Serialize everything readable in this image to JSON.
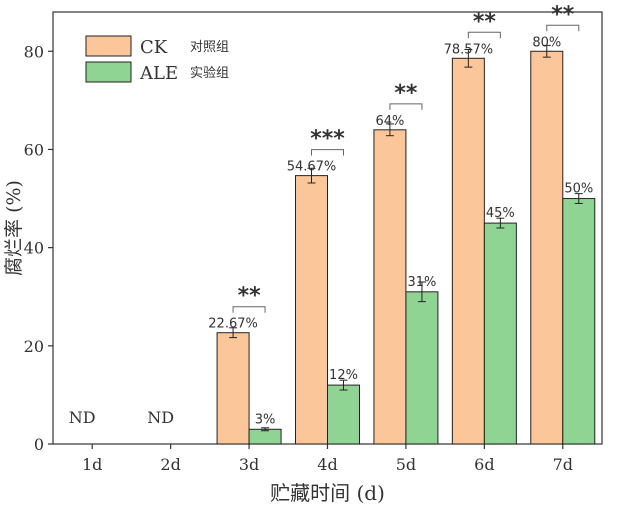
{
  "chart_data": {
    "type": "bar",
    "categories": [
      "1d",
      "2d",
      "3d",
      "4d",
      "5d",
      "6d",
      "7d"
    ],
    "xlabel": "贮藏时间 (d)",
    "ylabel": "腐烂率 (%)",
    "ylim": [
      0,
      88
    ],
    "yticks": [
      0,
      20,
      40,
      60,
      80
    ],
    "legend_position": "top-left",
    "series": [
      {
        "name": "CK",
        "name_cn": "对照组",
        "color": "#fbc79a",
        "values": [
          0,
          0,
          22.67,
          54.67,
          64,
          78.57,
          80
        ],
        "errors": [
          0,
          0,
          1.0,
          1.5,
          1.2,
          1.8,
          1.2
        ],
        "labels": [
          "ND",
          "ND",
          "22.67%",
          "54.67%",
          "64%",
          "78.57%",
          "80%"
        ]
      },
      {
        "name": "ALE",
        "name_cn": "实验组",
        "color": "#90d494",
        "values": [
          0,
          0,
          3,
          12,
          31,
          45,
          50
        ],
        "errors": [
          0,
          0,
          0.3,
          1.0,
          2.0,
          1.0,
          1.0
        ],
        "labels": [
          "",
          "",
          "3%",
          "12%",
          "31%",
          "45%",
          "50%"
        ]
      }
    ],
    "significance": [
      "",
      "",
      "**",
      "***",
      "**",
      "**",
      "**"
    ]
  }
}
